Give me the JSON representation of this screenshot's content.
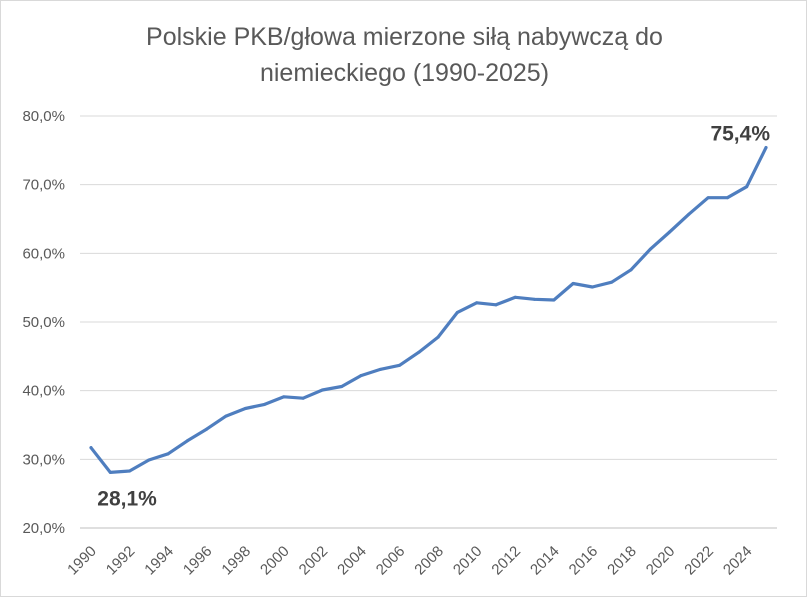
{
  "chart_data": {
    "type": "line",
    "title_line1": "Polskie PKB/głowa mierzone siłą nabywczą do",
    "title_line2": "niemieckiego (1990-2025)",
    "xlabel": "",
    "ylabel": "",
    "x": [
      1990,
      1991,
      1992,
      1993,
      1994,
      1995,
      1996,
      1997,
      1998,
      1999,
      2000,
      2001,
      2002,
      2003,
      2004,
      2005,
      2006,
      2007,
      2008,
      2009,
      2010,
      2011,
      2012,
      2013,
      2014,
      2015,
      2016,
      2017,
      2018,
      2019,
      2020,
      2021,
      2022,
      2023,
      2024,
      2025
    ],
    "series": [
      {
        "values": [
          31.7,
          28.1,
          28.3,
          29.9,
          30.8,
          32.7,
          34.4,
          36.3,
          37.4,
          38.0,
          39.1,
          38.9,
          40.1,
          40.6,
          42.2,
          43.1,
          43.7,
          45.6,
          47.8,
          51.4,
          52.8,
          52.5,
          53.6,
          53.3,
          53.2,
          55.6,
          55.1,
          55.8,
          57.6,
          60.6,
          63.1,
          65.7,
          68.1,
          68.1,
          69.7,
          75.4
        ],
        "color": "#4f7ebf"
      }
    ],
    "ylim": [
      20,
      80
    ],
    "y_ticks": [
      20,
      30,
      40,
      50,
      60,
      70,
      80
    ],
    "y_tick_labels": [
      "20,0%",
      "30,0%",
      "40,0%",
      "50,0%",
      "60,0%",
      "70,0%",
      "80,0%"
    ],
    "x_ticks": [
      1990,
      1992,
      1994,
      1996,
      1998,
      2000,
      2002,
      2004,
      2006,
      2008,
      2010,
      2012,
      2014,
      2016,
      2018,
      2020,
      2022,
      2024
    ],
    "x_tick_labels": [
      "1990",
      "1992",
      "1994",
      "1996",
      "1998",
      "2000",
      "2002",
      "2004",
      "2006",
      "2008",
      "2010",
      "2012",
      "2014",
      "2016",
      "2018",
      "2020",
      "2022",
      "2024"
    ],
    "grid": true,
    "legend": "none",
    "annotations": [
      {
        "x": 1991,
        "y": 28.1,
        "text": "28,1%",
        "position": "below"
      },
      {
        "x": 2025,
        "y": 75.4,
        "text": "75,4%",
        "position": "above-left"
      }
    ],
    "gridline_color": "#d9d9d9",
    "axis_color": "#bfbfbf"
  }
}
